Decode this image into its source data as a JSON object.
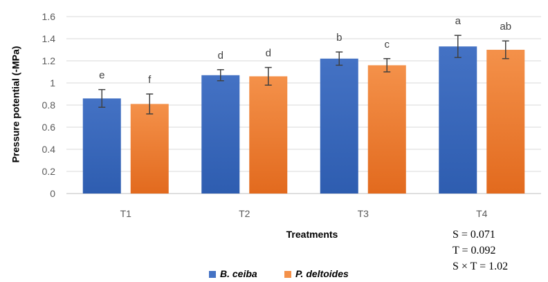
{
  "chart_data": {
    "type": "bar",
    "xlabel": "Treatments",
    "ylabel": "Pressure potential (-MPa)",
    "ylim": [
      0,
      1.6
    ],
    "yticks": [
      "0",
      "0.2",
      "0.4",
      "0.6",
      "0.8",
      "1",
      "1.2",
      "1.4",
      "1.6"
    ],
    "grid": true,
    "legend_position": "bottom",
    "categories": [
      "T1",
      "T2",
      "T3",
      "T4"
    ],
    "series": [
      {
        "name": "B. ceiba",
        "color": "#4472C4",
        "color_dark": "#2E5DB0",
        "values": [
          0.86,
          1.07,
          1.22,
          1.33
        ],
        "errors": [
          0.08,
          0.05,
          0.06,
          0.1
        ],
        "labels": [
          "e",
          "d",
          "b",
          "a"
        ]
      },
      {
        "name": "P. deltoides",
        "color": "#F4914A",
        "color_dark": "#E26A1E",
        "values": [
          0.81,
          1.06,
          1.16,
          1.3
        ],
        "errors": [
          0.09,
          0.08,
          0.06,
          0.08
        ],
        "labels": [
          "f",
          "d",
          "c",
          "ab"
        ]
      }
    ],
    "annotations": [
      "S = 0.071",
      "T = 0.092",
      "S × T = 1.02"
    ]
  }
}
